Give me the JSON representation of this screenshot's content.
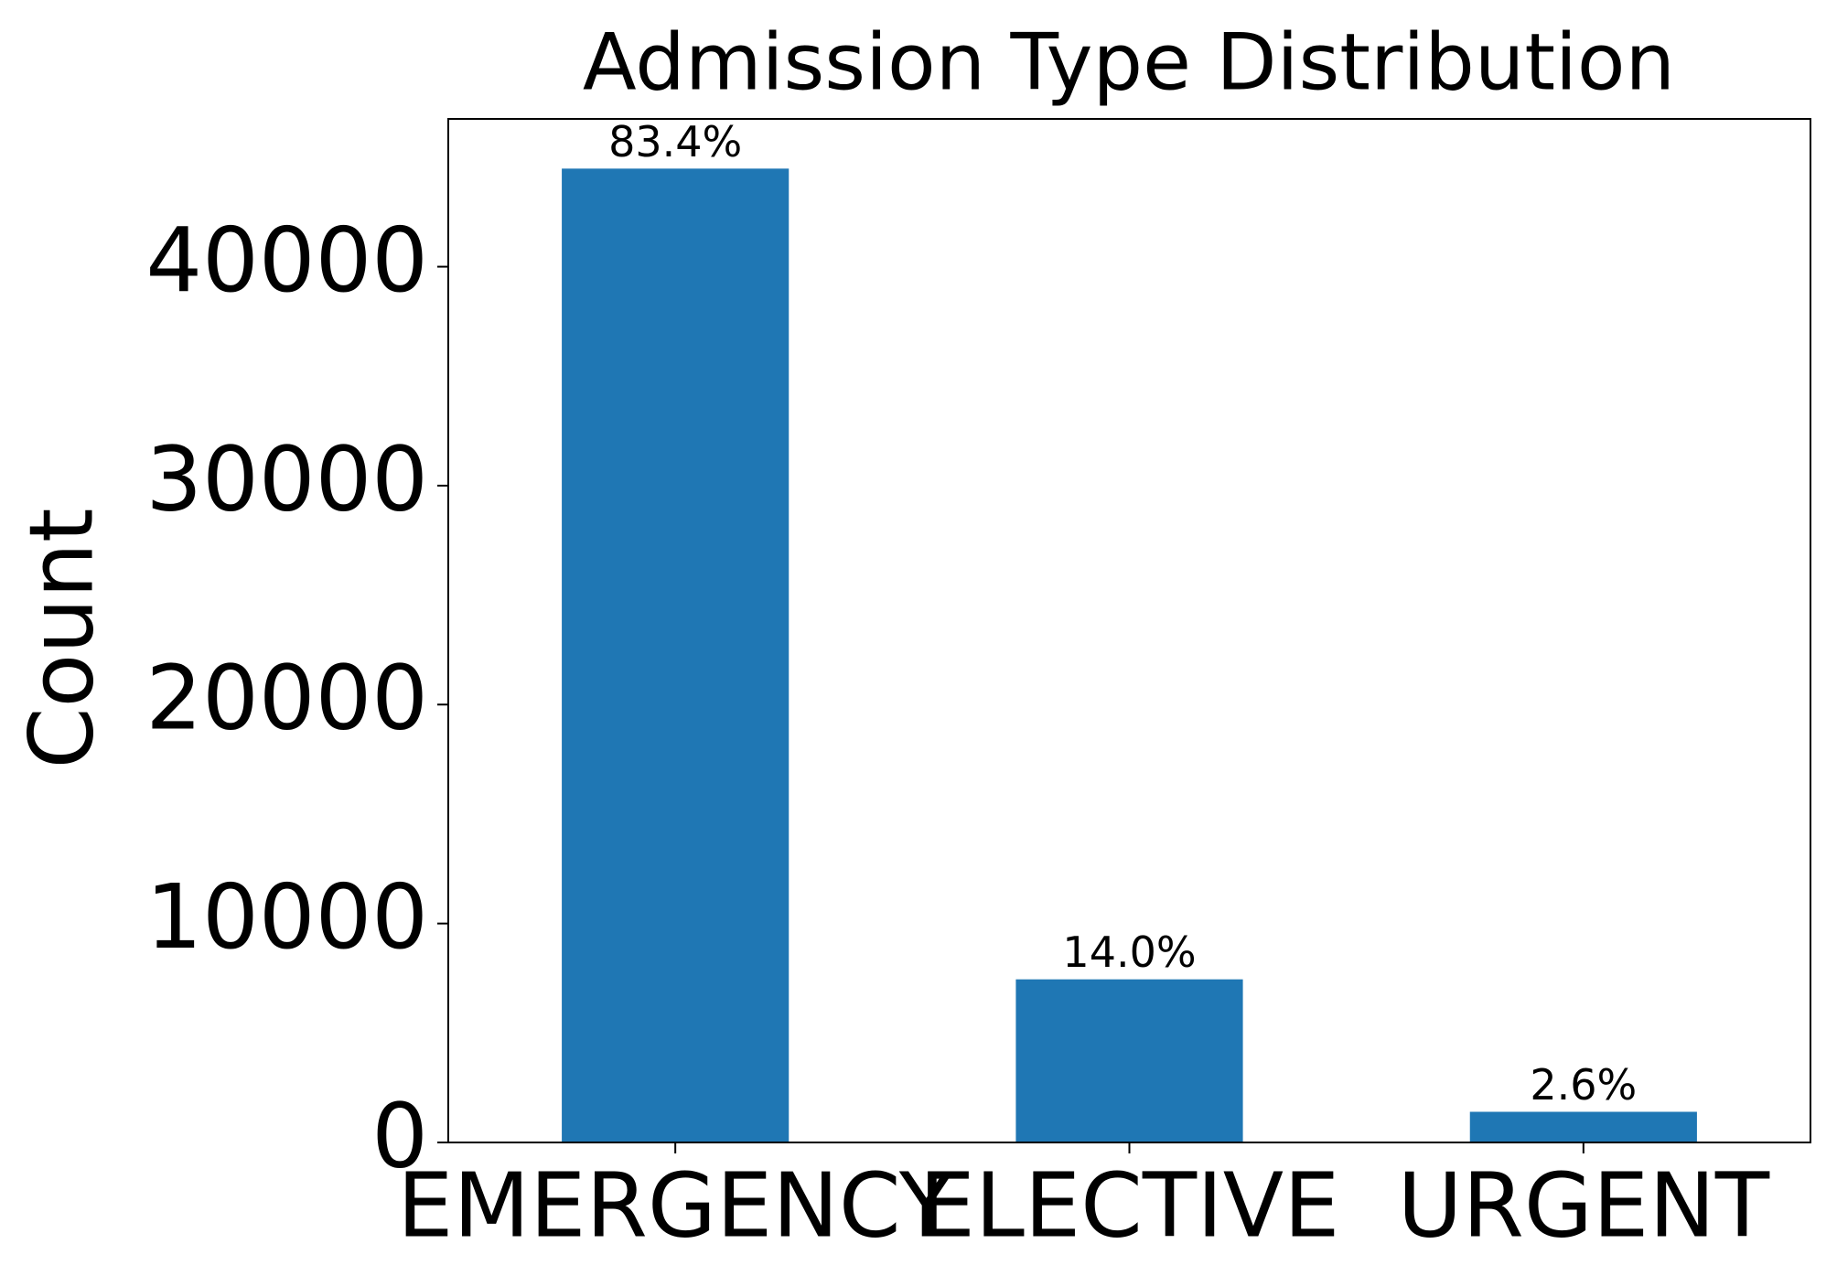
{
  "chart_data": {
    "type": "bar",
    "title": "Admission Type Distribution",
    "ylabel": "Count",
    "categories": [
      "EMERGENCY",
      "ELECTIVE",
      "URGENT"
    ],
    "values": [
      44480,
      7450,
      1400
    ],
    "bar_labels": [
      "83.4%",
      "14.0%",
      "2.6%"
    ],
    "color": "#1f77b4",
    "ylim": [
      0,
      46750
    ],
    "yticks": [
      0,
      10000,
      20000,
      30000,
      40000
    ],
    "grid": false
  }
}
